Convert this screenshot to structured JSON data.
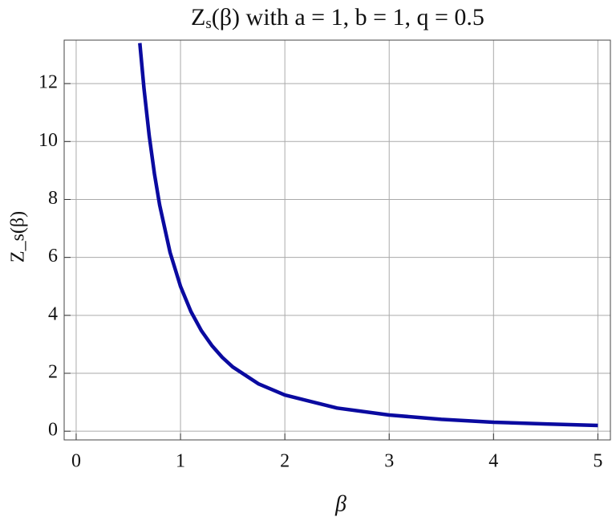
{
  "chart_data": {
    "type": "line",
    "title": {
      "main": "Z",
      "subscript": "s",
      "rest": "(β) with a = 1, b = 1, q = 0.5"
    },
    "x_label": "β",
    "y_label": "Z_s(β)",
    "x": [
      0.61,
      0.65,
      0.7,
      0.75,
      0.8,
      0.9,
      1,
      1.1,
      1.2,
      1.3,
      1.4,
      1.5,
      1.75,
      2,
      2.5,
      3,
      3.5,
      4,
      4.5,
      5
    ],
    "series": [
      {
        "color": "#0a0aa0",
        "values": [
          13.4,
          11.83,
          10.2,
          8.89,
          7.81,
          6.17,
          5,
          4.13,
          3.47,
          2.96,
          2.55,
          2.22,
          1.63,
          1.25,
          0.8,
          0.56,
          0.41,
          0.31,
          0.25,
          0.2
        ]
      }
    ],
    "xlim": [
      -0.115,
      5.12
    ],
    "ylim": [
      -0.3,
      13.5
    ],
    "xticks": [
      0,
      1,
      2,
      3,
      4,
      5
    ],
    "yticks": [
      0,
      2,
      4,
      6,
      8,
      10,
      12
    ],
    "grid": true
  }
}
